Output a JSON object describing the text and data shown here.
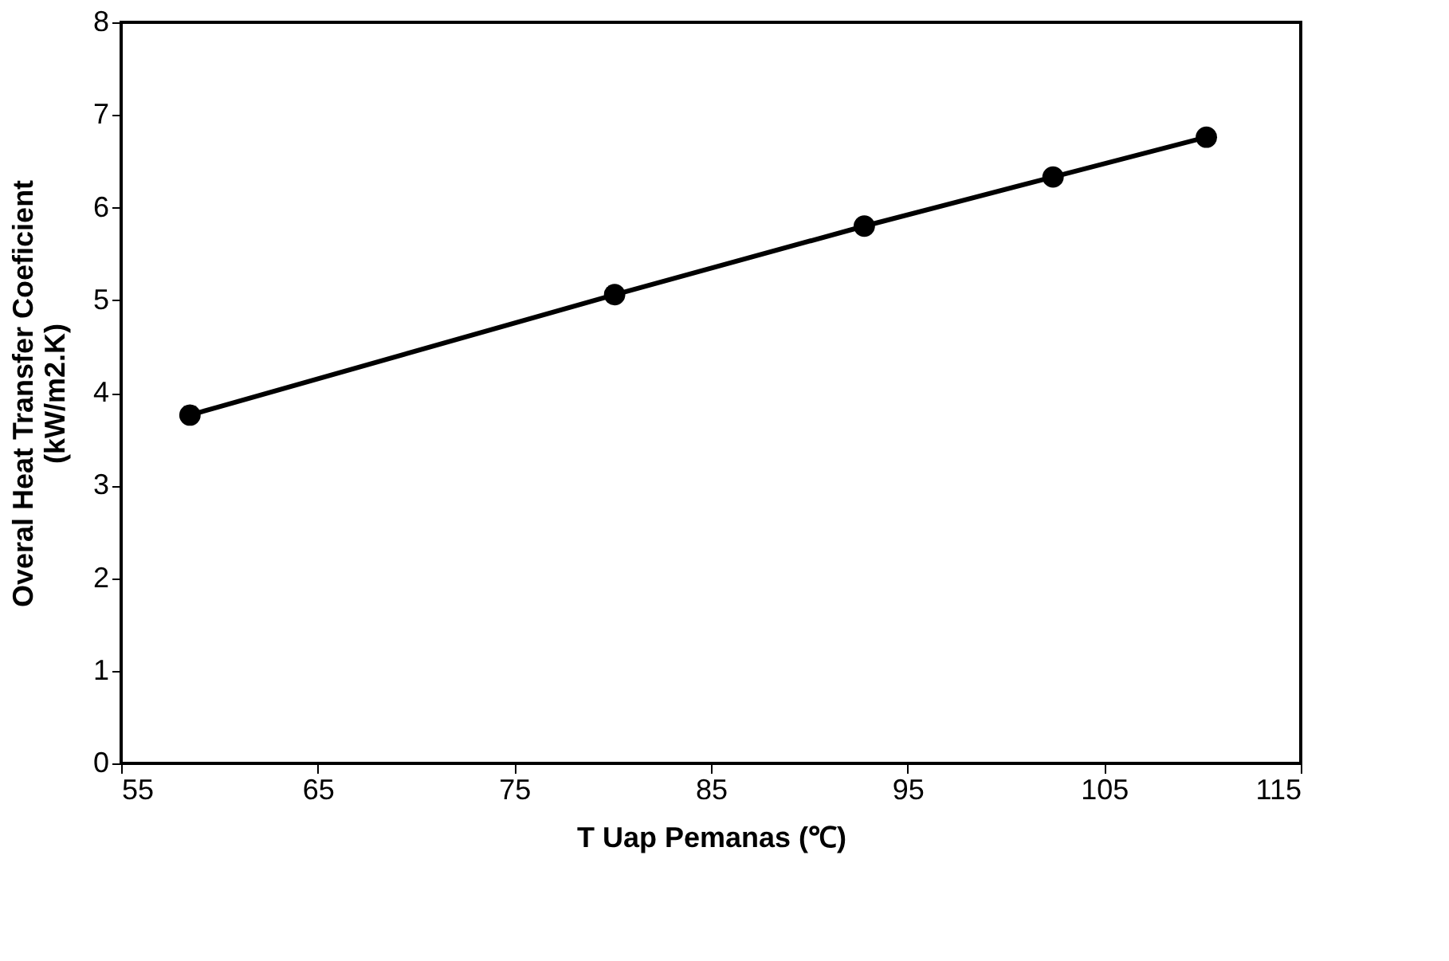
{
  "chart_data": {
    "type": "line",
    "xlabel": "T Uap Pemanas (℃)",
    "ylabel": "Overal Heat Transfer Coeficient (kW/m2.K)",
    "x": [
      58.5,
      80.1,
      92.8,
      102.4,
      110.2
    ],
    "series": [
      {
        "color": "#000000",
        "values": [
          3.76,
          5.06,
          5.8,
          6.33,
          6.76
        ]
      }
    ],
    "marker": "circle",
    "line_style": "solid",
    "grid": false,
    "legend": false,
    "xlim": [
      55,
      115
    ],
    "xticks": [
      55,
      65,
      75,
      85,
      95,
      105,
      115
    ],
    "ylim": [
      0,
      8
    ],
    "yticks": [
      0,
      1,
      2,
      3,
      4,
      5,
      6,
      7,
      8
    ]
  }
}
